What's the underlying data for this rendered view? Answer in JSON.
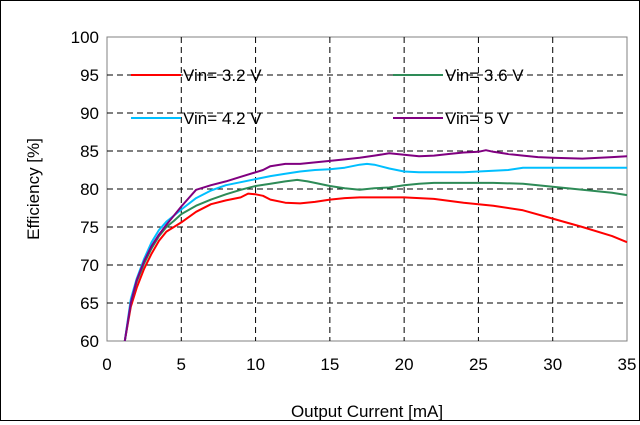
{
  "chart_data": {
    "type": "line",
    "title": "",
    "xlabel": "Output Current [mA]",
    "ylabel": "Efficiency [%]",
    "xlim": [
      0,
      35
    ],
    "ylim": [
      60,
      100
    ],
    "xticks": [
      0,
      5,
      10,
      15,
      20,
      25,
      30,
      35
    ],
    "yticks": [
      60,
      65,
      70,
      75,
      80,
      85,
      90,
      95,
      100
    ],
    "grid": true,
    "legend_position": "top-left",
    "series": [
      {
        "name": "Vin= 3.2 V",
        "color": "#ff0000",
        "x": [
          1.2,
          1.6,
          2.0,
          2.5,
          3.0,
          3.5,
          4.0,
          4.5,
          5.0,
          6.0,
          7.0,
          8.0,
          9.0,
          9.5,
          10.0,
          10.5,
          11.0,
          12.0,
          13.0,
          14.0,
          15.0,
          16.0,
          17.0,
          18.0,
          20.0,
          22.0,
          24.0,
          26.0,
          28.0,
          30.0,
          32.0,
          34.0,
          35.0
        ],
        "y": [
          60.0,
          64.5,
          67.0,
          69.5,
          71.5,
          73.2,
          74.4,
          75.0,
          75.6,
          77.0,
          78.0,
          78.5,
          78.9,
          79.4,
          79.3,
          79.1,
          78.6,
          78.2,
          78.1,
          78.3,
          78.6,
          78.8,
          78.9,
          78.9,
          78.9,
          78.7,
          78.2,
          77.8,
          77.2,
          76.1,
          75.0,
          73.8,
          73.0
        ]
      },
      {
        "name": "Vin= 3.6 V",
        "color": "#2e8b57",
        "x": [
          1.2,
          1.6,
          2.0,
          2.5,
          3.0,
          3.5,
          4.0,
          4.5,
          5.0,
          6.0,
          7.0,
          8.0,
          9.0,
          10.0,
          11.0,
          12.0,
          12.8,
          13.5,
          14.0,
          15.0,
          16.0,
          17.0,
          18.0,
          19.0,
          20.0,
          21.0,
          22.0,
          24.0,
          26.0,
          28.0,
          30.0,
          32.0,
          34.0,
          35.0
        ],
        "y": [
          60.0,
          65.0,
          67.8,
          70.2,
          72.2,
          73.8,
          75.0,
          75.8,
          76.7,
          77.8,
          78.6,
          79.3,
          79.9,
          80.4,
          80.7,
          81.0,
          81.2,
          81.0,
          80.8,
          80.4,
          80.1,
          79.9,
          80.1,
          80.2,
          80.5,
          80.7,
          80.8,
          80.8,
          80.8,
          80.7,
          80.3,
          79.9,
          79.5,
          79.2
        ]
      },
      {
        "name": "Vin= 4.2 V",
        "color": "#00bfff",
        "x": [
          1.2,
          1.6,
          2.0,
          2.5,
          3.0,
          3.5,
          4.0,
          4.5,
          5.0,
          6.0,
          7.0,
          8.0,
          9.0,
          10.0,
          11.0,
          12.0,
          13.0,
          14.0,
          15.0,
          16.0,
          17.0,
          17.5,
          18.0,
          19.0,
          20.0,
          21.0,
          22.0,
          24.0,
          26.0,
          27.0,
          28.0,
          30.0,
          32.0,
          34.0,
          35.0
        ],
        "y": [
          60.0,
          65.5,
          68.2,
          70.8,
          73.0,
          74.6,
          75.7,
          76.5,
          77.3,
          78.8,
          79.8,
          80.5,
          80.9,
          81.3,
          81.7,
          82.0,
          82.3,
          82.5,
          82.6,
          82.8,
          83.2,
          83.3,
          83.2,
          82.7,
          82.3,
          82.2,
          82.2,
          82.2,
          82.4,
          82.5,
          82.8,
          82.8,
          82.8,
          82.8,
          82.8
        ]
      },
      {
        "name": "Vin= 5 V",
        "color": "#800080",
        "x": [
          1.2,
          1.6,
          2.0,
          2.5,
          3.0,
          3.5,
          4.0,
          4.5,
          5.0,
          5.5,
          6.0,
          7.0,
          8.0,
          9.0,
          10.0,
          10.5,
          11.0,
          12.0,
          13.0,
          14.0,
          15.0,
          16.0,
          17.0,
          18.0,
          19.0,
          20.0,
          21.0,
          22.0,
          23.0,
          24.0,
          25.0,
          25.5,
          26.0,
          27.0,
          28.0,
          29.0,
          30.0,
          32.0,
          34.0,
          35.0
        ],
        "y": [
          60.0,
          65.0,
          68.0,
          70.5,
          72.5,
          74.0,
          75.3,
          76.5,
          77.7,
          78.8,
          79.9,
          80.5,
          81.0,
          81.6,
          82.2,
          82.5,
          83.0,
          83.3,
          83.3,
          83.5,
          83.7,
          83.9,
          84.1,
          84.4,
          84.7,
          84.5,
          84.3,
          84.4,
          84.6,
          84.8,
          84.9,
          85.1,
          84.9,
          84.6,
          84.4,
          84.2,
          84.1,
          84.0,
          84.2,
          84.3
        ]
      }
    ]
  }
}
